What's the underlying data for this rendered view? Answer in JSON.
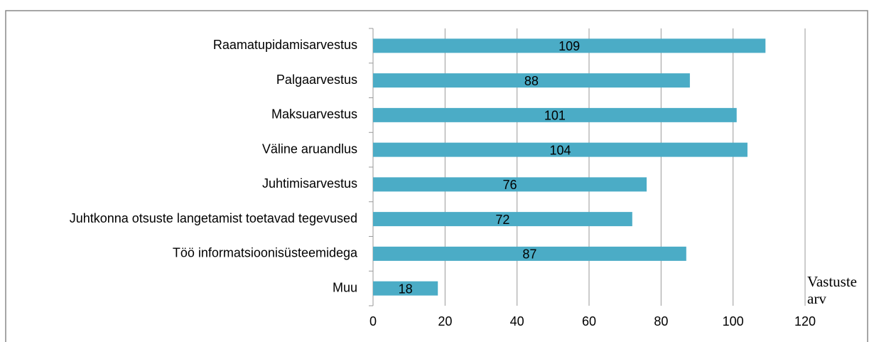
{
  "chart_data": {
    "type": "bar",
    "orientation": "horizontal",
    "categories": [
      "Raamatupidamisarvestus",
      "Palgaarvestus",
      "Maksuarvestus",
      "Väline aruandlus",
      "Juhtimisarvestus",
      "Juhtkonna otsuste langetamist toetavad tegevused",
      "Töö informatsioonisüsteemidega",
      "Muu"
    ],
    "values": [
      109,
      88,
      101,
      104,
      76,
      72,
      87,
      18
    ],
    "color": "#4bacc6",
    "xlabel": "Vastuste arv",
    "xlim": [
      0,
      120
    ],
    "xticks": [
      0,
      20,
      40,
      60,
      80,
      100,
      120
    ],
    "grid": true
  }
}
